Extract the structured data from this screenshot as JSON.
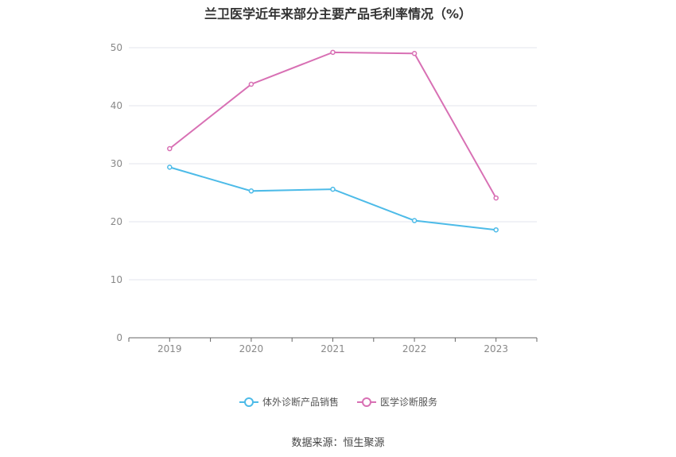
{
  "chart_data": {
    "type": "line",
    "title": "兰卫医学近年来部分主要产品毛利率情况（%）",
    "categories": [
      "2019",
      "2020",
      "2021",
      "2022",
      "2023"
    ],
    "series": [
      {
        "name": "体外诊断产品销售",
        "values": [
          29.4,
          25.3,
          25.6,
          20.2,
          18.6
        ],
        "color": "#4dbbe8"
      },
      {
        "name": "医学诊断服务",
        "values": [
          32.6,
          43.7,
          49.2,
          49.0,
          24.1
        ],
        "color": "#d870b4"
      }
    ],
    "ylim": [
      0,
      50
    ],
    "yticks": [
      0,
      10,
      20,
      30,
      40,
      50
    ],
    "grid": true,
    "legend_position": "bottom"
  },
  "source_label": "数据来源：恒生聚源"
}
